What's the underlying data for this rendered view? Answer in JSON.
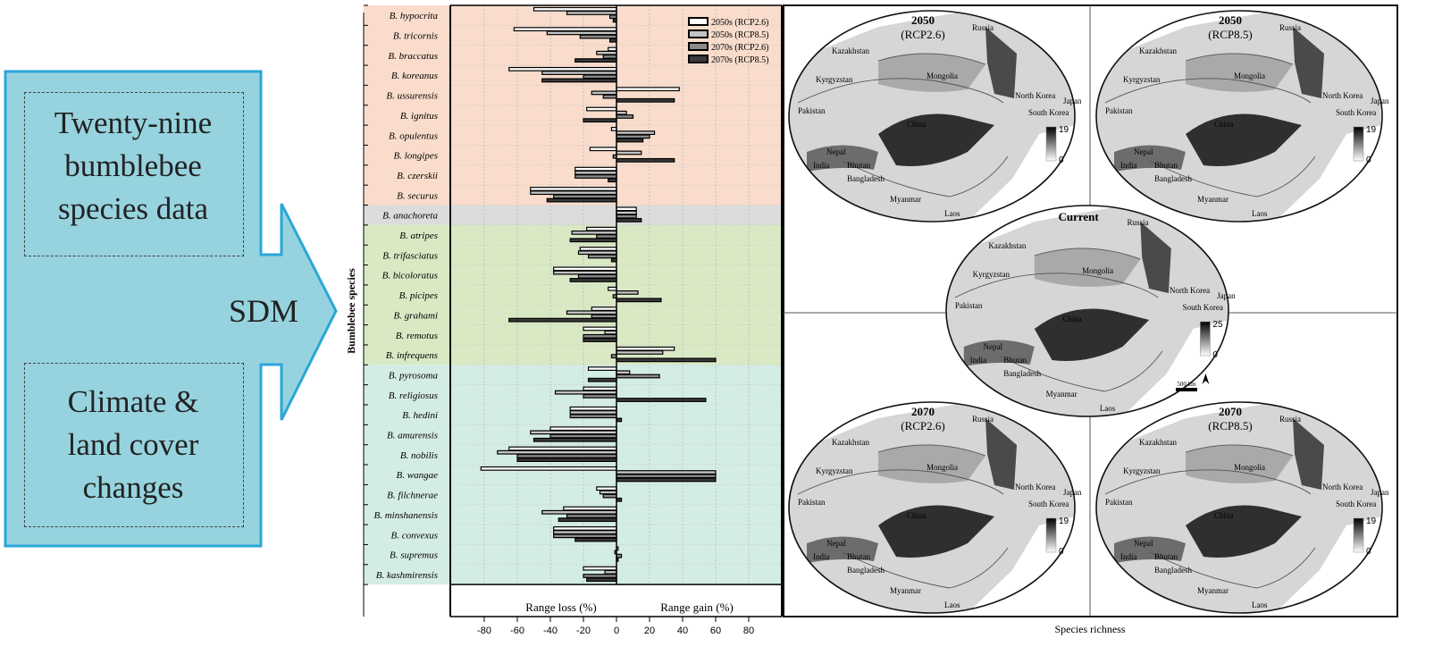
{
  "flow": {
    "box1_lines": [
      "Twenty-nine",
      "bumblebee",
      "species data"
    ],
    "box2_lines": [
      "Climate &",
      "land cover",
      "changes"
    ],
    "arrow_label": "SDM"
  },
  "chart_data": {
    "type": "bar",
    "orientation": "horizontal",
    "ylabel": "Bumblebee species",
    "xlabel_left": "Range loss (%)",
    "xlabel_right": "Range gain (%)",
    "xlim": [
      -100,
      100
    ],
    "xticks": [
      -80,
      -60,
      -40,
      -20,
      0,
      20,
      40,
      60,
      80
    ],
    "legend_position": "top-right",
    "categories": [
      "B. hypocrita",
      "B. tricornis",
      "B. braccatus",
      "B. koreanus",
      "B. ussurensis",
      "B. ignitus",
      "B. opulentus",
      "B. longipes",
      "B. czerskii",
      "B. securus",
      "B. anachoreta",
      "B. atripes",
      "B. trifasciatus",
      "B. bicoloratus",
      "B. picipes",
      "B. grahami",
      "B. remotus",
      "B. infrequens",
      "B. pyrosoma",
      "B. religiosus",
      "B. hedini",
      "B. amurensis",
      "B. nobilis",
      "B. wangae",
      "B. filchnerae",
      "B. minshanensis",
      "B. convexus",
      "B. supremus",
      "B. kashmirensis"
    ],
    "groups": [
      {
        "start": 0,
        "end": 9,
        "color": "#f9dccb"
      },
      {
        "start": 10,
        "end": 10,
        "color": "#dcdcdc"
      },
      {
        "start": 11,
        "end": 17,
        "color": "#d9e9c4"
      },
      {
        "start": 18,
        "end": 28,
        "color": "#d4ece6"
      }
    ],
    "series": [
      {
        "name": "2050s (RCP2.6)",
        "color": "#ffffff",
        "values": [
          -50,
          -62,
          -5,
          -65,
          38,
          -18,
          -3,
          -16,
          -25,
          -52,
          12,
          -18,
          -22,
          -38,
          -5,
          -15,
          -20,
          35,
          -17,
          -20,
          -28,
          -40,
          -65,
          -82,
          -12,
          -32,
          -38,
          1,
          -20
        ]
      },
      {
        "name": "2050s (RCP8.5)",
        "color": "#c4c4c4",
        "values": [
          -30,
          -42,
          -12,
          -45,
          -15,
          6,
          23,
          15,
          -25,
          -52,
          12,
          -27,
          -23,
          -38,
          13,
          -30,
          -7,
          28,
          8,
          -37,
          -28,
          -52,
          -72,
          60,
          -10,
          -45,
          -38,
          -1,
          -7
        ]
      },
      {
        "name": "2070s (RCP2.6)",
        "color": "#8a8a8a",
        "values": [
          -4,
          -22,
          -8,
          -20,
          -8,
          10,
          20,
          -2,
          -25,
          -38,
          12,
          -12,
          -17,
          -23,
          -2,
          -15,
          -20,
          -3,
          26,
          -20,
          -28,
          -40,
          -60,
          60,
          -8,
          -30,
          -38,
          3,
          -20
        ]
      },
      {
        "name": "2070s (RCP8.5)",
        "color": "#3a3a3a",
        "values": [
          -2,
          -4,
          -25,
          -45,
          35,
          -20,
          16,
          35,
          -5,
          -42,
          15,
          -28,
          -3,
          -28,
          27,
          -65,
          -20,
          60,
          -17,
          54,
          3,
          -50,
          -60,
          60,
          3,
          -35,
          -25,
          1,
          -18
        ]
      }
    ]
  },
  "maps": {
    "panels": [
      {
        "title": "2050",
        "subtitle": "(RCP2.6)",
        "scale_max": "19",
        "scale_min": "0"
      },
      {
        "title": "2050",
        "subtitle": "(RCP8.5)",
        "scale_max": "19",
        "scale_min": "0"
      },
      {
        "title": "Current",
        "subtitle": "",
        "scale_max": "25",
        "scale_min": "0"
      },
      {
        "title": "2070",
        "subtitle": "(RCP2.6)",
        "scale_max": "19",
        "scale_min": "0"
      },
      {
        "title": "2070",
        "subtitle": "(RCP8.5)",
        "scale_max": "19",
        "scale_min": "0"
      }
    ],
    "country_labels": [
      "Russia",
      "Kazakhstan",
      "Mongolia",
      "Kyrgyzstan",
      "Pakistan",
      "China",
      "North Korea",
      "South Korea",
      "Japan",
      "Nepal",
      "India",
      "Bhutan",
      "Bangladesh",
      "Myanmar",
      "Laos"
    ],
    "scalebar_label": "500 km",
    "xlabel": "Species richness"
  }
}
